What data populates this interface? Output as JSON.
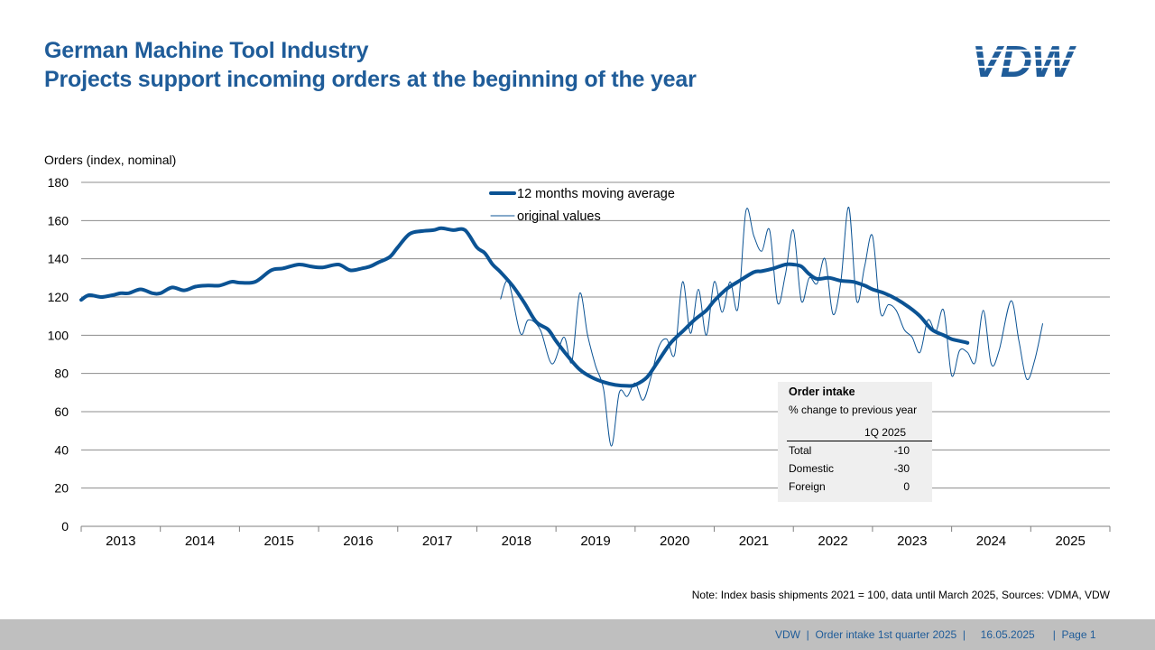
{
  "header": {
    "title": "German Machine Tool Industry",
    "subtitle": "Projects support incoming orders at the beginning of the year",
    "logo_text": "VDW"
  },
  "chart_data": {
    "type": "line",
    "ylabel": "Orders (index, nominal)",
    "ylim": [
      0,
      180
    ],
    "yticks": [
      0,
      20,
      40,
      60,
      80,
      100,
      120,
      140,
      160,
      180
    ],
    "x_years": [
      "2013",
      "2014",
      "2015",
      "2016",
      "2017",
      "2018",
      "2019",
      "2020",
      "2021",
      "2022",
      "2023",
      "2024",
      "2025"
    ],
    "grid": true,
    "legend_position": "top-center",
    "series": [
      {
        "name": "12 months moving average",
        "color": "#0b5394",
        "style": "thick",
        "x": [
          2013.0,
          2013.1,
          2013.25,
          2013.4,
          2013.5,
          2013.6,
          2013.75,
          2013.9,
          2014.0,
          2014.15,
          2014.3,
          2014.45,
          2014.6,
          2014.75,
          2014.9,
          2015.0,
          2015.2,
          2015.4,
          2015.55,
          2015.75,
          2015.9,
          2016.05,
          2016.25,
          2016.4,
          2016.55,
          2016.65,
          2016.75,
          2016.9,
          2017.0,
          2017.15,
          2017.3,
          2017.45,
          2017.55,
          2017.7,
          2017.85,
          2018.0,
          2018.1,
          2018.2,
          2018.3,
          2018.45,
          2018.6,
          2018.75,
          2018.9,
          2019.0,
          2019.15,
          2019.3,
          2019.45,
          2019.6,
          2019.75,
          2019.9,
          2020.0,
          2020.15,
          2020.3,
          2020.45,
          2020.6,
          2020.75,
          2020.9,
          2021.0,
          2021.15,
          2021.3,
          2021.5,
          2021.6,
          2021.75,
          2021.9,
          2022.0,
          2022.1,
          2022.2,
          2022.3,
          2022.45,
          2022.6,
          2022.75,
          2022.9,
          2023.0,
          2023.15,
          2023.3,
          2023.45,
          2023.6,
          2023.75,
          2023.9,
          2024.0,
          2024.1,
          2024.2
        ],
        "y": [
          118.5,
          121,
          120,
          121,
          122,
          122,
          124,
          122,
          122,
          125,
          123.5,
          125.5,
          126,
          126,
          128,
          127.5,
          128,
          134,
          135,
          137,
          136,
          135.5,
          137,
          134,
          135,
          136,
          138,
          141,
          146,
          153,
          154.5,
          155,
          156,
          155,
          155,
          146,
          143,
          137,
          133,
          126,
          117,
          107,
          103,
          97,
          89,
          82,
          78,
          75.5,
          74,
          73.5,
          74,
          78,
          87,
          96,
          102,
          108,
          113,
          118,
          124,
          128,
          133,
          133.5,
          135,
          137,
          137,
          136,
          132,
          129.5,
          130,
          128.5,
          128,
          126,
          124,
          122,
          119,
          115,
          110,
          103,
          100,
          98,
          97,
          96
        ]
      },
      {
        "name": "original values",
        "color": "#0b5394",
        "style": "thin",
        "x": [
          2018.3,
          2018.4,
          2018.55,
          2018.65,
          2018.8,
          2018.95,
          2019.1,
          2019.2,
          2019.3,
          2019.4,
          2019.5,
          2019.6,
          2019.7,
          2019.8,
          2019.9,
          2020.0,
          2020.1,
          2020.2,
          2020.3,
          2020.4,
          2020.5,
          2020.6,
          2020.7,
          2020.8,
          2020.9,
          2021.0,
          2021.1,
          2021.2,
          2021.3,
          2021.4,
          2021.5,
          2021.6,
          2021.7,
          2021.8,
          2021.9,
          2022.0,
          2022.1,
          2022.2,
          2022.3,
          2022.4,
          2022.5,
          2022.6,
          2022.7,
          2022.8,
          2022.9,
          2023.0,
          2023.1,
          2023.2,
          2023.3,
          2023.4,
          2023.5,
          2023.6,
          2023.7,
          2023.8,
          2023.9,
          2024.0,
          2024.1,
          2024.2,
          2024.3,
          2024.4,
          2024.5,
          2024.6,
          2024.75,
          2024.85,
          2024.95,
          2025.05,
          2025.15
        ],
        "y": [
          119,
          128,
          101,
          108,
          103,
          85,
          99,
          86,
          122,
          100,
          84,
          72,
          42,
          70,
          68,
          75,
          66,
          78,
          94,
          98,
          90,
          128,
          101,
          124,
          100,
          128,
          112,
          128,
          114,
          165,
          152,
          144,
          155,
          117,
          132,
          155,
          118,
          130,
          127,
          140,
          111,
          128,
          167,
          118,
          136,
          152,
          112,
          116,
          113,
          103,
          99,
          91,
          108,
          102,
          113,
          79,
          92,
          91,
          86,
          113,
          85,
          92,
          118,
          97,
          77,
          87,
          106
        ]
      }
    ]
  },
  "infobox": {
    "title": "Order intake",
    "subtitle": "% change to previous year",
    "column_header": "1Q 2025",
    "rows": [
      {
        "label": "Total",
        "value": "-10"
      },
      {
        "label": "Domestic",
        "value": "-30"
      },
      {
        "label": "Foreign",
        "value": "0"
      }
    ]
  },
  "note": "Note: Index basis shipments 2021 = 100, data until March 2025, Sources: VDMA, VDW",
  "footer": {
    "text": "VDW  |  Order intake 1st quarter 2025  |     16.05.2025      |  Page 1"
  }
}
